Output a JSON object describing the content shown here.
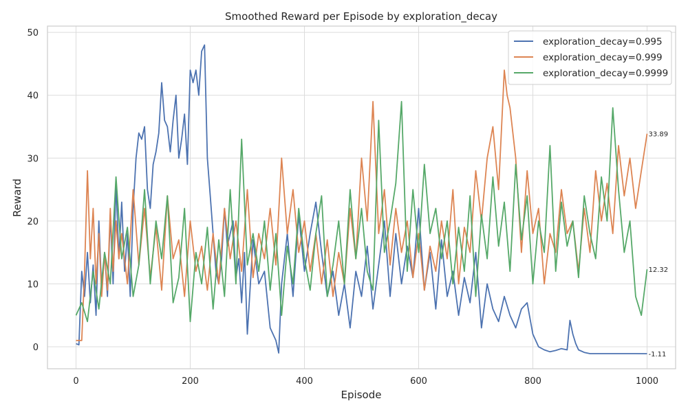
{
  "chart_data": {
    "type": "line",
    "title": "Smoothed Reward per Episode by exploration_decay",
    "xlabel": "Episode",
    "ylabel": "Reward",
    "xlim": [
      -50,
      1050
    ],
    "ylim": [
      -3.5,
      51
    ],
    "xticks": [
      0,
      200,
      400,
      600,
      800,
      1000
    ],
    "yticks": [
      0,
      10,
      20,
      30,
      40,
      50
    ],
    "grid": true,
    "legend_position": "top-right",
    "series": [
      {
        "name": "exploration_decay=0.995",
        "color": "#4c72b0",
        "end_label": "-1.11",
        "x": [
          0,
          5,
          10,
          15,
          20,
          25,
          30,
          35,
          40,
          45,
          50,
          55,
          60,
          65,
          70,
          75,
          80,
          85,
          90,
          95,
          100,
          105,
          110,
          115,
          120,
          125,
          130,
          135,
          140,
          145,
          150,
          155,
          160,
          165,
          170,
          175,
          180,
          185,
          190,
          195,
          200,
          205,
          210,
          215,
          220,
          225,
          230,
          235,
          240,
          245,
          250,
          255,
          260,
          265,
          270,
          275,
          280,
          285,
          290,
          295,
          300,
          310,
          320,
          330,
          340,
          350,
          355,
          360,
          370,
          380,
          390,
          400,
          410,
          420,
          430,
          440,
          450,
          460,
          470,
          480,
          490,
          500,
          510,
          520,
          530,
          540,
          550,
          560,
          570,
          580,
          590,
          600,
          610,
          620,
          630,
          640,
          650,
          660,
          670,
          680,
          690,
          700,
          710,
          720,
          730,
          740,
          750,
          760,
          770,
          780,
          790,
          800,
          810,
          820,
          830,
          840,
          850,
          860,
          865,
          870,
          875,
          880,
          890,
          900,
          920,
          940,
          960,
          980,
          1000
        ],
        "values": [
          0.5,
          0.3,
          12,
          8,
          15,
          7,
          13,
          5,
          20,
          9,
          15,
          8,
          21,
          10,
          26,
          14,
          23,
          12,
          18,
          8,
          22,
          30,
          34,
          33,
          35,
          25,
          22,
          29,
          31,
          34,
          42,
          36,
          35,
          31,
          36,
          40,
          30,
          33,
          37,
          29,
          44,
          42,
          44,
          40,
          47,
          48,
          30,
          24,
          18,
          12,
          10,
          14,
          22,
          16,
          18,
          20,
          11,
          14,
          7,
          15,
          2,
          17,
          10,
          12,
          3,
          1,
          -1,
          10,
          18,
          8,
          21,
          12,
          18,
          23,
          15,
          8,
          12,
          5,
          10,
          3,
          12,
          8,
          16,
          6,
          13,
          20,
          8,
          18,
          10,
          16,
          11,
          22,
          9,
          15,
          6,
          17,
          8,
          12,
          5,
          11,
          7,
          15,
          3,
          10,
          6,
          4,
          8,
          5,
          3,
          6,
          7,
          2,
          0,
          -0.5,
          -0.8,
          -0.6,
          -0.3,
          -0.5,
          4.2,
          2,
          0.5,
          -0.5,
          -0.9,
          -1.1,
          -1.1,
          -1.1,
          -1.1,
          -1.1,
          -1.11
        ]
      },
      {
        "name": "exploration_decay=0.999",
        "color": "#dd8452",
        "end_label": "33.89",
        "x": [
          0,
          10,
          15,
          20,
          25,
          30,
          35,
          40,
          45,
          50,
          55,
          60,
          65,
          70,
          75,
          80,
          90,
          100,
          110,
          120,
          130,
          140,
          150,
          160,
          170,
          180,
          190,
          200,
          210,
          220,
          230,
          240,
          250,
          260,
          270,
          280,
          290,
          300,
          310,
          320,
          330,
          340,
          350,
          360,
          370,
          380,
          390,
          400,
          410,
          420,
          430,
          440,
          450,
          460,
          470,
          480,
          490,
          500,
          510,
          520,
          530,
          540,
          550,
          560,
          570,
          580,
          590,
          600,
          610,
          620,
          630,
          640,
          650,
          660,
          670,
          680,
          690,
          700,
          710,
          720,
          730,
          740,
          750,
          755,
          760,
          770,
          780,
          790,
          800,
          810,
          820,
          830,
          840,
          850,
          860,
          870,
          880,
          890,
          900,
          910,
          920,
          930,
          940,
          950,
          960,
          970,
          980,
          990,
          1000
        ],
        "values": [
          1,
          1,
          12,
          28,
          14,
          22,
          10,
          18,
          8,
          15,
          9,
          22,
          12,
          20,
          14,
          18,
          10,
          25,
          13,
          22,
          11,
          19,
          9,
          24,
          14,
          17,
          8,
          20,
          12,
          16,
          9,
          18,
          10,
          22,
          14,
          20,
          12,
          25,
          11,
          18,
          14,
          22,
          13,
          30,
          18,
          25,
          15,
          20,
          12,
          18,
          10,
          17,
          8,
          15,
          10,
          22,
          14,
          30,
          20,
          39,
          18,
          25,
          13,
          22,
          15,
          20,
          11,
          18,
          9,
          16,
          12,
          20,
          14,
          25,
          10,
          19,
          15,
          28,
          20,
          30,
          35,
          25,
          44,
          40,
          38,
          30,
          15,
          28,
          18,
          22,
          10,
          18,
          15,
          25,
          18,
          20,
          12,
          22,
          15,
          28,
          20,
          26,
          18,
          32,
          24,
          30,
          22,
          28,
          33.89
        ]
      },
      {
        "name": "exploration_decay=0.9999",
        "color": "#55a868",
        "end_label": "12.32",
        "x": [
          0,
          10,
          20,
          30,
          40,
          50,
          60,
          70,
          80,
          90,
          100,
          110,
          120,
          130,
          140,
          150,
          160,
          170,
          180,
          190,
          200,
          210,
          220,
          230,
          240,
          250,
          260,
          270,
          280,
          290,
          300,
          310,
          320,
          330,
          340,
          350,
          360,
          370,
          380,
          390,
          400,
          410,
          420,
          430,
          440,
          450,
          460,
          470,
          480,
          490,
          500,
          510,
          520,
          530,
          540,
          550,
          560,
          570,
          580,
          590,
          600,
          610,
          620,
          630,
          640,
          650,
          660,
          670,
          680,
          690,
          700,
          710,
          720,
          730,
          740,
          750,
          760,
          770,
          780,
          790,
          800,
          810,
          820,
          830,
          840,
          850,
          860,
          870,
          880,
          890,
          900,
          910,
          920,
          930,
          940,
          950,
          960,
          970,
          980,
          990,
          1000
        ],
        "values": [
          5,
          7,
          4,
          12,
          6,
          15,
          10,
          27,
          14,
          19,
          8,
          13,
          25,
          10,
          20,
          14,
          24,
          7,
          11,
          22,
          4,
          15,
          10,
          19,
          6,
          17,
          8,
          25,
          10,
          33,
          13,
          18,
          12,
          20,
          9,
          18,
          5,
          16,
          10,
          22,
          14,
          9,
          18,
          24,
          8,
          13,
          20,
          10,
          25,
          14,
          22,
          12,
          9,
          36,
          15,
          20,
          26,
          39,
          12,
          25,
          15,
          29,
          18,
          22,
          14,
          20,
          10,
          19,
          12,
          24,
          8,
          21,
          14,
          27,
          16,
          23,
          12,
          29,
          17,
          24,
          10,
          20,
          15,
          32,
          12,
          23,
          16,
          20,
          11,
          24,
          18,
          14,
          27,
          20,
          38,
          25,
          15,
          20,
          8,
          5,
          12.32
        ]
      }
    ]
  }
}
